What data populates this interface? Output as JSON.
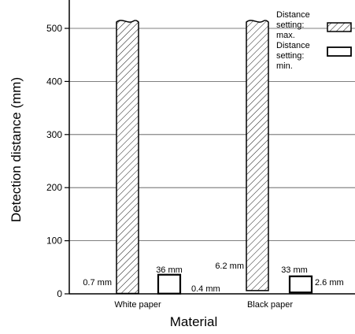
{
  "chart_data": {
    "type": "bar",
    "xlabel": "Material",
    "ylabel": "Detection distance  (mm)",
    "yticks": [
      0,
      100,
      200,
      300,
      400,
      500
    ],
    "ylim": [
      0,
      550
    ],
    "grid": true,
    "categories": [
      "White paper",
      "Black paper"
    ],
    "series": [
      {
        "name": "Distance setting: max.",
        "values": [
          500,
          500
        ],
        "min_labels": [
          "0.7 mm",
          "6.2 mm"
        ],
        "pattern": "hatched"
      },
      {
        "name": "Distance setting: min.",
        "values": [
          36,
          33
        ],
        "min_labels": [
          "0.4 mm",
          "2.6 mm"
        ],
        "top_labels": [
          "36 mm",
          "33 mm"
        ],
        "pattern": "open"
      }
    ],
    "legend": {
      "placement": "top-right",
      "max_lines": [
        "Distance",
        "setting:",
        "max."
      ],
      "min_lines": [
        "Distance",
        "setting:",
        "min."
      ]
    }
  }
}
